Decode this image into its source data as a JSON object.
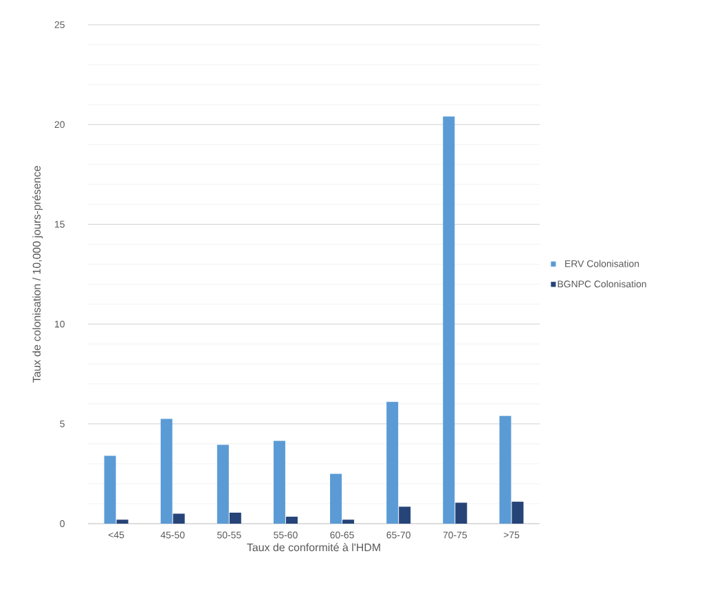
{
  "chart_data": {
    "type": "bar",
    "xlabel": "Taux de conformité à l'HDM",
    "ylabel": "Taux de colonisation / 10,000 jours-présence",
    "categories": [
      "<45",
      "45-50",
      "50-55",
      "55-60",
      "60-65",
      "65-70",
      "70-75",
      ">75"
    ],
    "series": [
      {
        "name": "ERV Colonisation",
        "color": "#5b9bd5",
        "values": [
          3.4,
          5.25,
          3.95,
          4.15,
          2.5,
          6.1,
          20.4,
          5.4
        ]
      },
      {
        "name": "BGNPC Colonisation",
        "color": "#264478",
        "values": [
          0.2,
          0.5,
          0.55,
          0.35,
          0.2,
          0.85,
          1.05,
          1.1
        ]
      }
    ],
    "ylim": [
      0,
      25
    ],
    "yticks": [
      0,
      5,
      10,
      15,
      20,
      25
    ],
    "grid": "y",
    "legend": "right"
  }
}
